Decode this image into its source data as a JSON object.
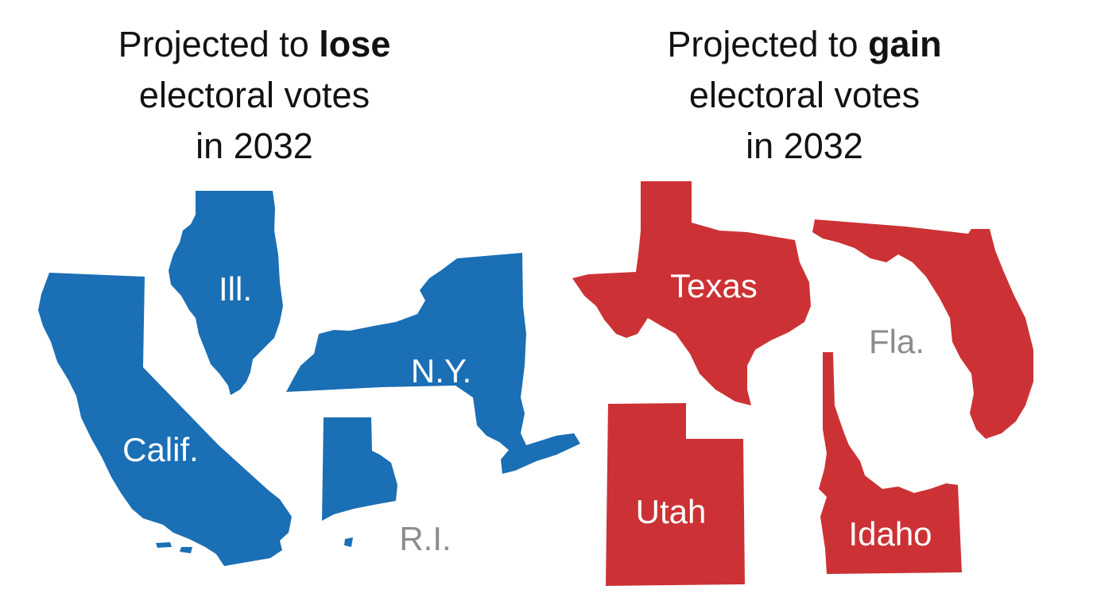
{
  "colors": {
    "lose": "#1a6fb5",
    "gain": "#cc3235",
    "label_inside": "#ffffff",
    "label_outside": "#8c8c8c",
    "heading": "#121212"
  },
  "lose": {
    "heading_prefix": "Projected to ",
    "heading_bold": "lose",
    "heading_line2": "electoral votes",
    "heading_line3": "in 2032",
    "states": [
      {
        "id": "illinois",
        "label": "Ill.",
        "label_placement": "inside"
      },
      {
        "id": "california",
        "label": "Calif.",
        "label_placement": "inside"
      },
      {
        "id": "new-york",
        "label": "N.Y.",
        "label_placement": "inside"
      },
      {
        "id": "rhode-island",
        "label": "R.I.",
        "label_placement": "outside"
      }
    ]
  },
  "gain": {
    "heading_prefix": "Projected to ",
    "heading_bold": "gain",
    "heading_line2": "electoral votes",
    "heading_line3": "in 2032",
    "states": [
      {
        "id": "texas",
        "label": "Texas",
        "label_placement": "inside"
      },
      {
        "id": "florida",
        "label": "Fla.",
        "label_placement": "outside"
      },
      {
        "id": "utah",
        "label": "Utah",
        "label_placement": "inside"
      },
      {
        "id": "idaho",
        "label": "Idaho",
        "label_placement": "inside"
      }
    ]
  }
}
